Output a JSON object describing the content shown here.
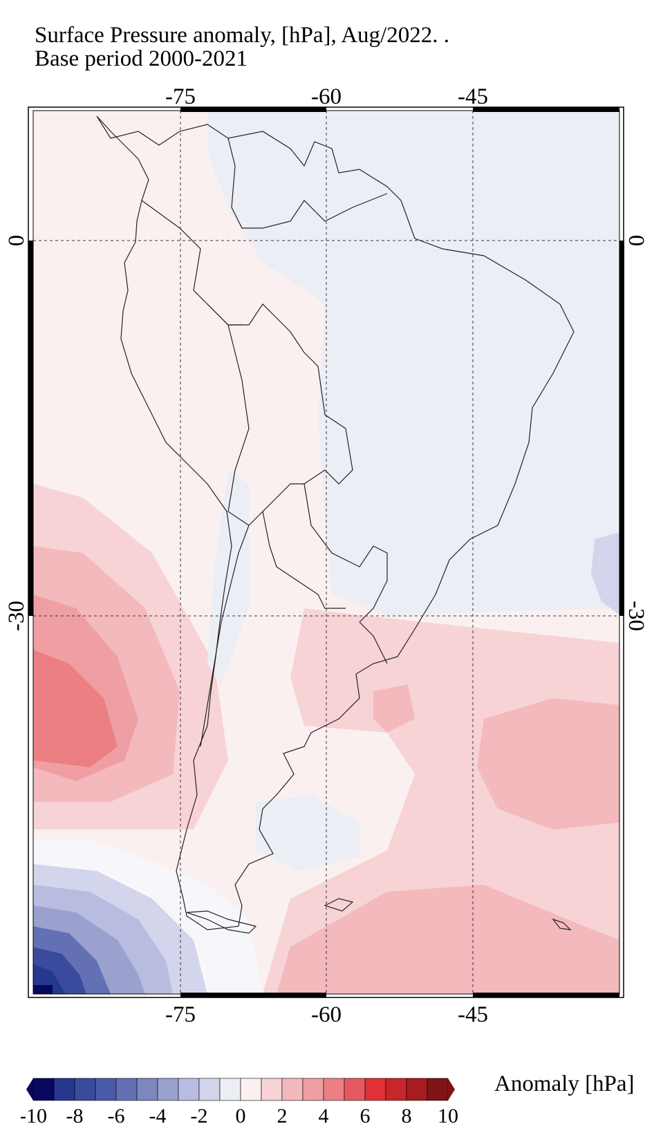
{
  "title": {
    "line1": "Surface Pressure anomaly, [hPa], Aug/2022. .",
    "line2": "Base period 2000-2021"
  },
  "map": {
    "lon_ticks": [
      "-75",
      "-60",
      "-45"
    ],
    "lat_ticks": [
      "0",
      "-30"
    ],
    "colors": {
      "land_line": "#222222",
      "grid": "#333333",
      "frame": "#000000",
      "very_light_blue": "#eceef5",
      "very_light_pink": "#fbf0f0"
    }
  },
  "colorbar": {
    "label": "Anomaly [hPa]",
    "tick_labels": [
      "-10",
      "-8",
      "-6",
      "-4",
      "-2",
      "0",
      "2",
      "4",
      "6",
      "8",
      "10"
    ],
    "colors": [
      "#08085e",
      "#26378f",
      "#3a4b9e",
      "#4a5aa8",
      "#6470b4",
      "#7c86c0",
      "#9aa1cf",
      "#b7bce0",
      "#d2d5eb",
      "#eceef5",
      "#fbf0f0",
      "#f7d3d5",
      "#f3b9bc",
      "#ef9fa3",
      "#eb7f84",
      "#e5595f",
      "#e03236",
      "#c8262a",
      "#a61c20",
      "#7f1416"
    ]
  }
}
